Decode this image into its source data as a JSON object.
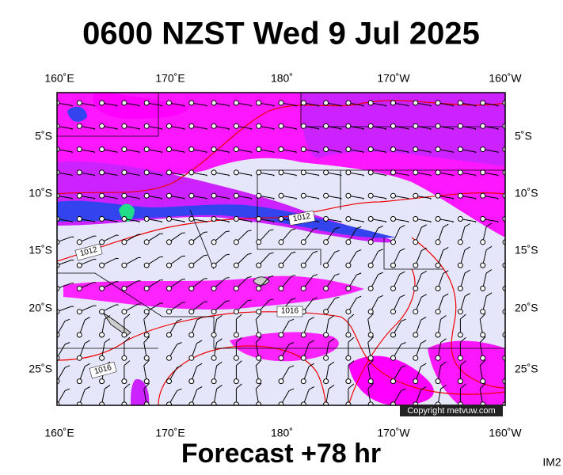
{
  "title": "0600 NZST Wed 9 Jul 2025",
  "longitude_labels": [
    "160˚E",
    "170˚E",
    "180˚",
    "170˚W",
    "160˚W"
  ],
  "latitude_labels": [
    "5˚S",
    "10˚S",
    "15˚S",
    "20˚S",
    "25˚S"
  ],
  "isobar_labels": [
    "1012",
    "1012",
    "1016",
    "1016"
  ],
  "copyright": "Copyright metvuw.com",
  "footer": "Forecast +78 hr",
  "image_id": "IM2"
}
